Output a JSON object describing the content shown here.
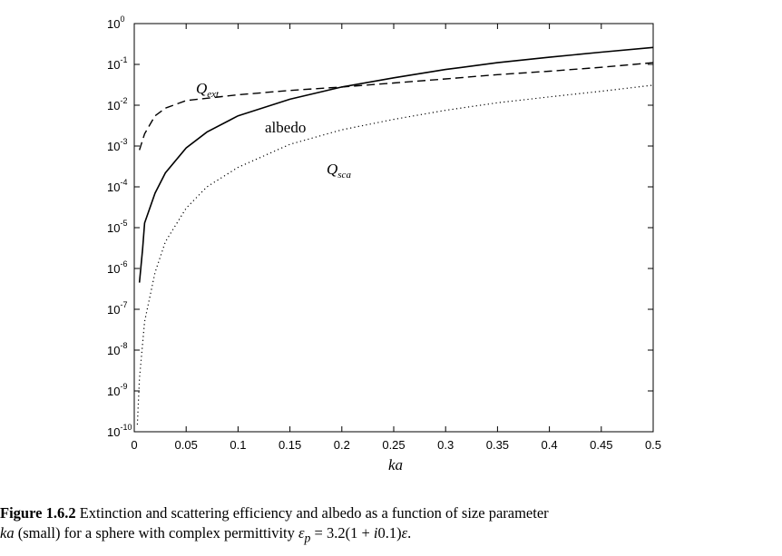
{
  "chart_data": {
    "type": "line",
    "xlabel": "ka",
    "ylabel": "",
    "xlim": [
      0,
      0.5
    ],
    "ylim": [
      1e-10,
      1
    ],
    "yscale": "log",
    "grid": false,
    "legend": "none (curves labelled inline)",
    "x_tick_labels": [
      "0",
      "0.05",
      "0.1",
      "0.15",
      "0.2",
      "0.25",
      "0.3",
      "0.35",
      "0.4",
      "0.45",
      "0.5"
    ],
    "y_tick_exponents": [
      "0",
      "-1",
      "-2",
      "-3",
      "-4",
      "-5",
      "-6",
      "-7",
      "-8",
      "-9",
      "-10"
    ],
    "y_tick_base": "10",
    "series": [
      {
        "name": "Q_ext",
        "label_main": "Q",
        "label_sub": "ext",
        "style": "dashed",
        "x": [
          0.005,
          0.01,
          0.02,
          0.03,
          0.05,
          0.1,
          0.15,
          0.2,
          0.25,
          0.3,
          0.35,
          0.4,
          0.45,
          0.5
        ],
        "y": [
          0.0008,
          0.002,
          0.0055,
          0.0085,
          0.013,
          0.018,
          0.023,
          0.028,
          0.035,
          0.044,
          0.056,
          0.068,
          0.085,
          0.11
        ]
      },
      {
        "name": "albedo",
        "label_main": "albedo",
        "style": "solid",
        "x": [
          0.005,
          0.008,
          0.01,
          0.02,
          0.03,
          0.05,
          0.07,
          0.1,
          0.15,
          0.2,
          0.25,
          0.3,
          0.35,
          0.4,
          0.45,
          0.5
        ],
        "y": [
          4.5e-07,
          3e-06,
          1.3e-05,
          7e-05,
          0.00022,
          0.0009,
          0.0022,
          0.0055,
          0.014,
          0.028,
          0.047,
          0.075,
          0.11,
          0.15,
          0.2,
          0.26
        ]
      },
      {
        "name": "Q_sca",
        "label_main": "Q",
        "label_sub": "sca",
        "style": "dotted",
        "x": [
          0.003,
          0.005,
          0.01,
          0.02,
          0.03,
          0.05,
          0.07,
          0.1,
          0.15,
          0.2,
          0.25,
          0.3,
          0.35,
          0.4,
          0.45,
          0.5
        ],
        "y": [
          1.5e-10,
          2e-09,
          5e-08,
          8e-07,
          4.5e-06,
          3e-05,
          0.0001,
          0.0003,
          0.0011,
          0.0025,
          0.0045,
          0.0075,
          0.0115,
          0.016,
          0.022,
          0.031
        ]
      }
    ]
  },
  "caption": {
    "figure_number": "Figure 1.6.2",
    "text_line1": " Extinction and scattering efficiency and albedo as a function of size parameter",
    "math_ka": "ka",
    "text_line2": " (small) for a sphere with complex permittivity ",
    "math_eps": "ε",
    "math_eps_sub": "p",
    "math_eq": " = 3.2(1 + ",
    "math_i": "i",
    "math_rest": "0.1)",
    "math_eps2": "ε",
    "period": "."
  }
}
